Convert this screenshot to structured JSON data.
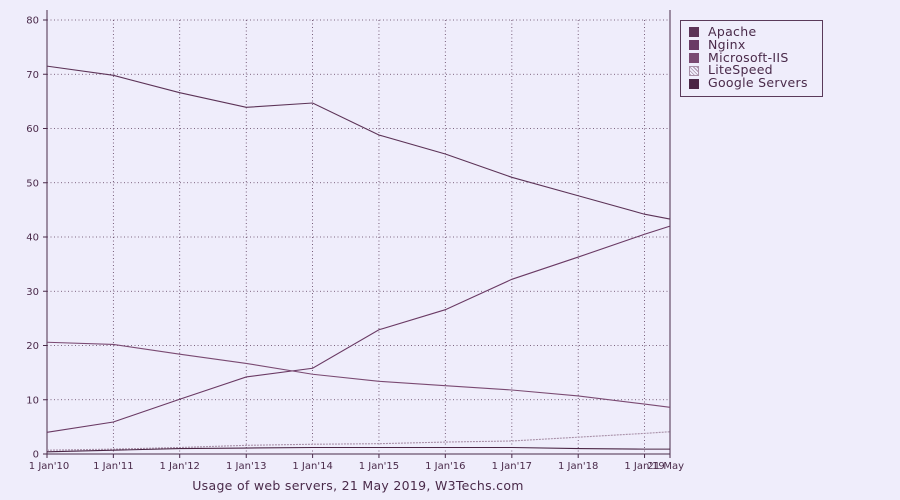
{
  "chart_data": {
    "type": "line",
    "title": "Usage of web servers, 21 May 2019, W3Techs.com",
    "x": [
      "1 Jan'10",
      "1 Jan'11",
      "1 Jan'12",
      "1 Jan'13",
      "1 Jan'14",
      "1 Jan'15",
      "1 Jan'16",
      "1 Jan'17",
      "1 Jan'18",
      "1 Jan'19",
      "21 May"
    ],
    "x_dates": [
      "2010-01-01",
      "2011-01-01",
      "2012-01-01",
      "2013-01-01",
      "2014-01-01",
      "2015-01-01",
      "2016-01-01",
      "2017-01-01",
      "2018-01-01",
      "2019-01-01",
      "2019-05-21"
    ],
    "ylim": [
      0,
      80
    ],
    "yticks": [
      0,
      10,
      20,
      30,
      40,
      50,
      60,
      70,
      80
    ],
    "grid": true,
    "legend_position": "top-right",
    "series": [
      {
        "name": "Apache",
        "color": "#5c3357",
        "values": [
          71.5,
          69.8,
          66.6,
          63.9,
          64.7,
          58.8,
          55.3,
          51.0,
          47.6,
          44.2,
          43.3
        ]
      },
      {
        "name": "Nginx",
        "color": "#6a3a64",
        "values": [
          4.0,
          5.9,
          10.1,
          14.2,
          15.8,
          22.9,
          26.6,
          32.2,
          36.3,
          40.5,
          42.0
        ]
      },
      {
        "name": "Microsoft-IIS",
        "color": "#7a4a72",
        "values": [
          20.6,
          20.2,
          18.4,
          16.7,
          14.7,
          13.4,
          12.6,
          11.8,
          10.7,
          9.2,
          8.6
        ]
      },
      {
        "name": "LiteSpeed",
        "color": "#a890a8",
        "values": [
          0.7,
          0.9,
          1.2,
          1.6,
          1.8,
          1.9,
          2.2,
          2.4,
          3.1,
          3.8,
          4.1
        ]
      },
      {
        "name": "Google Servers",
        "color": "#4a2545",
        "values": [
          0.4,
          0.7,
          1.0,
          1.1,
          1.2,
          1.2,
          1.2,
          1.2,
          1.0,
          0.9,
          0.9
        ]
      }
    ]
  }
}
